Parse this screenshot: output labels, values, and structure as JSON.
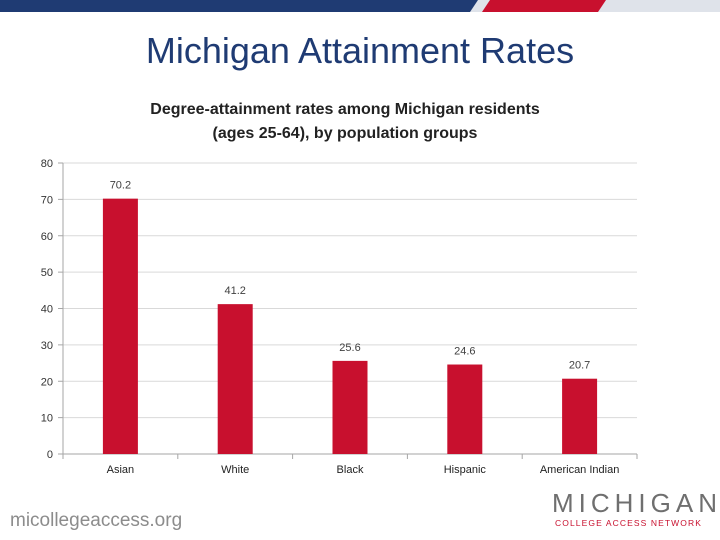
{
  "slide": {
    "title": "Michigan Attainment Rates",
    "footer_url": "micollegeaccess.org"
  },
  "logo": {
    "word": "MICHIGAN",
    "subtitle": "COLLEGE ACCESS NETWORK"
  },
  "colors": {
    "bar": "#c8102e",
    "title": "#1f3b73",
    "top_bar_navy": "#1f3b73",
    "top_bar_red": "#c8102e",
    "gridline": "#d9d9d9"
  },
  "chart_data": {
    "type": "bar",
    "title_lines": [
      "Degree-attainment rates among Michigan residents",
      "(ages 25-64), by population groups"
    ],
    "categories": [
      "Asian",
      "White",
      "Black",
      "Hispanic",
      "American Indian"
    ],
    "values": [
      70.2,
      41.2,
      25.6,
      24.6,
      20.7
    ],
    "data_labels": [
      "70.2",
      "41.2",
      "25.6",
      "24.6",
      "20.7"
    ],
    "ylim": [
      0,
      80
    ],
    "yticks": [
      0,
      10,
      20,
      30,
      40,
      50,
      60,
      70,
      80
    ],
    "xlabel": "",
    "ylabel": "",
    "grid": true,
    "legend": "none"
  }
}
